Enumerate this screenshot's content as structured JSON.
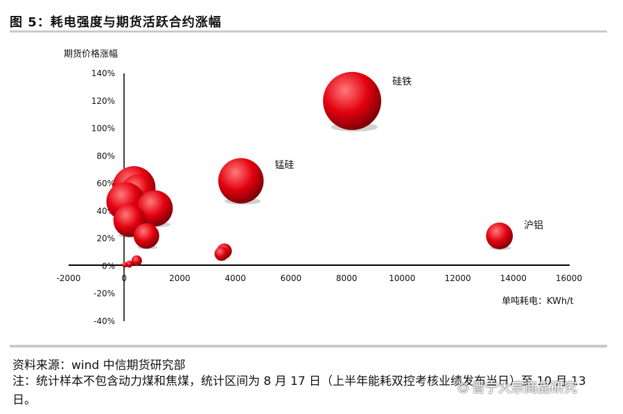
{
  "figure": {
    "title": "图 5：耗电强度与期货活跃合约涨幅"
  },
  "footer": {
    "source": "资料来源：wind 中信期货研究部",
    "note": "注：统计样本不包含动力煤和焦煤，统计区间为 8 月 17 日（上半年能耗双控考核业绩发布当日）至 10 月 13 日。",
    "watermark": "晋宁大宗商品研究"
  },
  "colors": {
    "bubble_fill": "#e3000f",
    "bubble_highlight": "#ff7a7a",
    "bubble_shadow": "#7a0008",
    "rule": "#c9c9c9"
  },
  "chart_data": {
    "type": "bubble",
    "title": "图 5：耗电强度与期货活跃合约涨幅",
    "xlabel": "单吨耗电：KWh/t",
    "ylabel": "期货价格涨幅",
    "xlim": [
      -2000,
      16000
    ],
    "ylim": [
      -40,
      140
    ],
    "x_ticks": [
      "-2000",
      "0",
      "2000",
      "4000",
      "6000",
      "8000",
      "10000",
      "12000",
      "14000",
      "16000"
    ],
    "y_ticks": [
      "-40%",
      "-20%",
      "0%",
      "20%",
      "40%",
      "60%",
      "80%",
      "100%",
      "120%",
      "140%"
    ],
    "grid": false,
    "legend": "none",
    "points": [
      {
        "x": 8200,
        "y": 120,
        "size": 100,
        "label": "硅铁"
      },
      {
        "x": 4200,
        "y": 62,
        "size": 78,
        "label": "锰硅"
      },
      {
        "x": 13500,
        "y": 22,
        "size": 46,
        "label": "沪铝"
      },
      {
        "x": 350,
        "y": 57,
        "size": 74,
        "label": ""
      },
      {
        "x": 500,
        "y": 54,
        "size": 60,
        "label": ""
      },
      {
        "x": 50,
        "y": 47,
        "size": 66,
        "label": ""
      },
      {
        "x": 1100,
        "y": 42,
        "size": 62,
        "label": ""
      },
      {
        "x": 200,
        "y": 33,
        "size": 56,
        "label": ""
      },
      {
        "x": 800,
        "y": 22,
        "size": 44,
        "label": ""
      },
      {
        "x": 3600,
        "y": 11,
        "size": 26,
        "label": ""
      },
      {
        "x": 3500,
        "y": 9,
        "size": 24,
        "label": ""
      },
      {
        "x": 450,
        "y": 4,
        "size": 18,
        "label": ""
      },
      {
        "x": 180,
        "y": 1.5,
        "size": 12,
        "label": ""
      },
      {
        "x": 20,
        "y": 1,
        "size": 9,
        "label": ""
      }
    ]
  }
}
